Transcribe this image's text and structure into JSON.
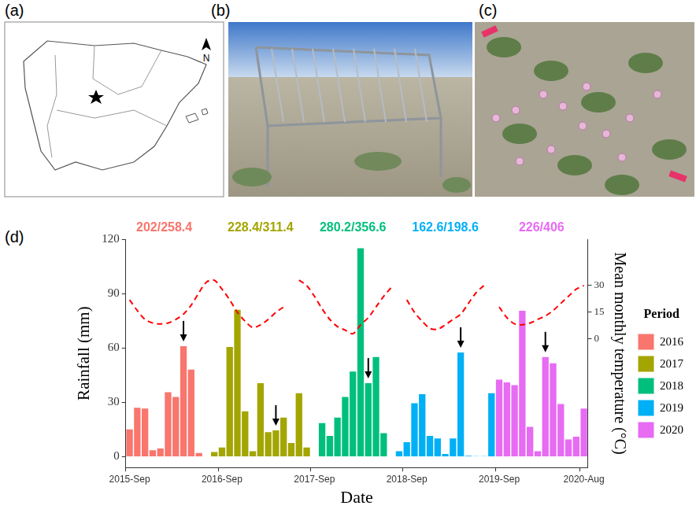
{
  "panels": [
    {
      "letter": "(a)",
      "compass": "N"
    },
    {
      "letter": "(b)"
    },
    {
      "letter": "(c)"
    }
  ],
  "chart_data": {
    "type": "bar",
    "letter": "(d)",
    "x_label": "Date",
    "y_label": "Rainfall (mm)",
    "y2_label": "Mean monthly temperature (°C)",
    "categories": [
      "2015-Sep",
      null,
      null,
      null,
      null,
      null,
      null,
      null,
      null,
      null,
      null,
      null,
      "2016-Sep",
      null,
      null,
      null,
      null,
      null,
      null,
      null,
      null,
      null,
      null,
      null,
      "2017-Sep",
      null,
      null,
      null,
      null,
      null,
      null,
      null,
      null,
      null,
      null,
      null,
      "2018-Sep",
      null,
      null,
      null,
      null,
      null,
      null,
      null,
      null,
      null,
      null,
      null,
      "2019-Sep",
      null,
      null,
      null,
      null,
      null,
      null,
      null,
      null,
      null,
      null,
      "2020-Aug"
    ],
    "series": [
      {
        "name": "2016",
        "color": "#F8766D",
        "annotation": "202/258.4",
        "values": [
          15,
          27,
          26.5,
          3.5,
          4.5,
          35.5,
          33,
          61,
          48,
          2,
          null,
          null,
          null,
          null,
          null,
          null,
          null,
          null,
          null,
          null,
          null,
          null,
          null,
          null,
          null,
          null,
          null,
          null,
          null,
          null,
          null,
          null,
          null,
          null,
          null,
          null,
          null,
          null,
          null,
          null,
          null,
          null,
          null,
          null,
          null,
          null,
          null,
          null,
          null,
          null,
          null,
          null,
          null,
          null,
          null,
          null,
          null,
          null,
          null,
          null
        ]
      },
      {
        "name": "2017",
        "color": "#A3A500",
        "annotation": "228.4/311.4",
        "values": [
          null,
          null,
          null,
          null,
          null,
          null,
          null,
          null,
          null,
          null,
          null,
          2.5,
          5,
          60.5,
          81,
          25,
          3,
          40.5,
          13.5,
          14.5,
          21.5,
          7.5,
          35,
          5,
          null,
          null,
          null,
          null,
          null,
          null,
          null,
          null,
          null,
          null,
          null,
          null,
          null,
          null,
          null,
          null,
          null,
          null,
          null,
          null,
          null,
          null,
          null,
          null,
          null,
          null,
          null,
          null,
          null,
          null,
          null,
          null,
          null,
          null,
          null,
          null
        ]
      },
      {
        "name": "2018",
        "color": "#00BF7D",
        "annotation": "280.2/356.6",
        "values": [
          null,
          null,
          null,
          null,
          null,
          null,
          null,
          null,
          null,
          null,
          null,
          null,
          null,
          null,
          null,
          null,
          null,
          null,
          null,
          null,
          null,
          null,
          null,
          null,
          null,
          18.5,
          11.5,
          21.5,
          33,
          47,
          115,
          40.5,
          55,
          13,
          null,
          null,
          null,
          null,
          null,
          null,
          null,
          null,
          null,
          null,
          null,
          null,
          null,
          null,
          null,
          null,
          null,
          null,
          null,
          null,
          null,
          null,
          null,
          null,
          null,
          null
        ]
      },
      {
        "name": "2019",
        "color": "#00B0F6",
        "annotation": "162.6/198.6",
        "values": [
          null,
          null,
          null,
          null,
          null,
          null,
          null,
          null,
          null,
          null,
          null,
          null,
          null,
          null,
          null,
          null,
          null,
          null,
          null,
          null,
          null,
          null,
          null,
          null,
          null,
          null,
          null,
          null,
          null,
          null,
          null,
          null,
          null,
          null,
          null,
          3,
          8,
          29.5,
          34.5,
          11.5,
          10,
          1.5,
          10,
          57.5,
          0.5,
          0.3,
          0.3,
          35,
          null,
          null,
          null,
          null,
          null,
          null,
          null,
          null,
          null,
          null,
          null,
          null
        ]
      },
      {
        "name": "2020",
        "color": "#E76BF3",
        "annotation": "226/406",
        "values": [
          null,
          null,
          null,
          null,
          null,
          null,
          null,
          null,
          null,
          null,
          null,
          null,
          null,
          null,
          null,
          null,
          null,
          null,
          null,
          null,
          null,
          null,
          null,
          null,
          null,
          null,
          null,
          null,
          null,
          null,
          null,
          null,
          null,
          null,
          null,
          null,
          null,
          null,
          null,
          null,
          null,
          null,
          null,
          null,
          null,
          null,
          null,
          null,
          42.5,
          41,
          39.5,
          80.5,
          16.5,
          3,
          55,
          51.5,
          29,
          9.5,
          11,
          26.5
        ]
      },
      {
        "type": "line",
        "axis": "y2",
        "color": "#FF0000",
        "line_style": "dashed",
        "values": [
          22,
          16,
          11,
          9,
          8.5,
          9,
          11,
          14,
          19,
          26,
          32,
          33,
          28,
          22,
          15,
          10,
          6.5,
          8,
          11,
          15,
          18,
          null,
          33,
          30,
          24,
          17,
          11,
          7,
          5,
          3,
          8,
          12,
          18,
          24,
          29,
          null,
          22,
          15,
          10,
          6,
          5.5,
          8,
          11,
          14,
          20,
          26,
          30,
          null,
          18,
          12,
          8.5,
          8,
          9,
          11,
          13,
          16,
          20,
          24,
          28,
          30
        ]
      }
    ],
    "arrow_index": [
      7,
      19,
      31,
      43,
      54
    ],
    "ylim": [
      -6,
      120
    ],
    "yticks": [
      0,
      30,
      60,
      90,
      120
    ],
    "y2lim": [
      -72,
      56
    ],
    "y2ticks": [
      0,
      15,
      30
    ],
    "grid": false,
    "legend": "right",
    "legend_title": "Period"
  }
}
